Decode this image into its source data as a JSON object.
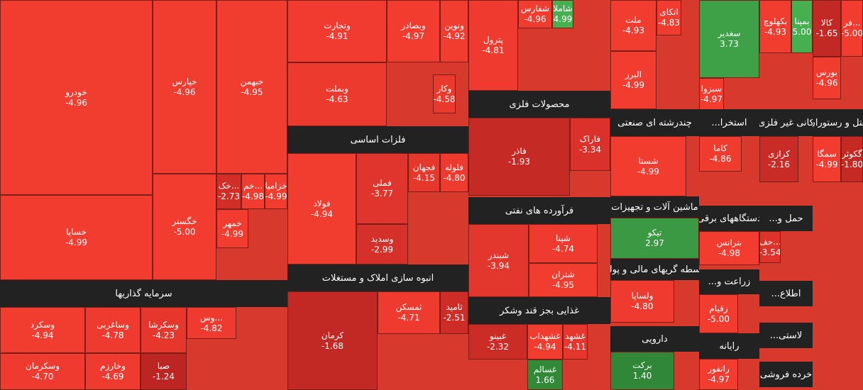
{
  "sectors": [
    {
      "tiles": [
        {
          "symbol": "خودرو",
          "change": "-4.96"
        },
        {
          "symbol": "خساپا",
          "change": "-4.99"
        },
        {
          "symbol": "خپارس",
          "change": "-4.96"
        },
        {
          "symbol": "خبهمن",
          "change": "-4.95"
        },
        {
          "symbol": "خگستر",
          "change": "-5.00"
        },
        {
          "symbol": "خک...",
          "change": "-2.73"
        },
        {
          "symbol": "خم...",
          "change": "-4.98"
        },
        {
          "symbol": "خزامیا",
          "change": "-4.99"
        },
        {
          "symbol": "خمهر",
          "change": "-4.99"
        }
      ]
    },
    {
      "name": "سرمایه گذاریها",
      "tiles": [
        {
          "symbol": "وسکرد",
          "change": "-4.94"
        },
        {
          "symbol": "وساغربی",
          "change": "-4.78"
        },
        {
          "symbol": "وسکرشا",
          "change": "-4.23"
        },
        {
          "symbol": "وس...",
          "change": "-4.82"
        },
        {
          "symbol": "وسکرمان",
          "change": "-4.70"
        },
        {
          "symbol": "وخارزم",
          "change": "-4.69"
        },
        {
          "symbol": "صبا",
          "change": "-1.24"
        }
      ]
    },
    {
      "tiles": [
        {
          "symbol": "وتجارت",
          "change": "-4.91"
        },
        {
          "symbol": "وبصادر",
          "change": "-4.97"
        },
        {
          "symbol": "ونوین",
          "change": "-4.92"
        },
        {
          "symbol": "وبملت",
          "change": "-4.63"
        },
        {
          "symbol": "وکار",
          "change": "-4.58"
        }
      ]
    },
    {
      "name": "فلزات اساسی",
      "tiles": [
        {
          "symbol": "فولاد",
          "change": "-4.94"
        },
        {
          "symbol": "فملی",
          "change": "-3.77"
        },
        {
          "symbol": "فجهان",
          "change": "-4.15"
        },
        {
          "symbol": "فلوله",
          "change": "-4.80"
        },
        {
          "symbol": "وسدید",
          "change": "-2.99"
        }
      ]
    },
    {
      "name": "انبوه سازی املاک و مستغلات",
      "tiles": [
        {
          "symbol": "کرمان",
          "change": "-1.68"
        },
        {
          "symbol": "ثمسکن",
          "change": "-4.71"
        },
        {
          "symbol": "ثامید",
          "change": "-2.51"
        }
      ]
    },
    {
      "tiles": [
        {
          "symbol": "پترول",
          "change": "-4.81"
        },
        {
          "symbol": "شفارس",
          "change": "-4.96"
        },
        {
          "symbol": "شاملا",
          "change": "4.99"
        }
      ]
    },
    {
      "name": "محصولات فلزی",
      "tiles": [
        {
          "symbol": "فاذر",
          "change": "-1.93"
        },
        {
          "symbol": "فاراک",
          "change": "-3.34"
        }
      ]
    },
    {
      "name": "فرآورده های نفتی",
      "tiles": [
        {
          "symbol": "شبندر",
          "change": "-3.94"
        },
        {
          "symbol": "شپنا",
          "change": "-4.74"
        },
        {
          "symbol": "شتران",
          "change": "-4.95"
        }
      ]
    },
    {
      "name": "غذایی بجز قند وشکر",
      "tiles": [
        {
          "symbol": "غبینو",
          "change": "-2.32"
        },
        {
          "symbol": "غشهداب",
          "change": "-4.94"
        },
        {
          "symbol": "غشهد",
          "change": "-4.11"
        },
        {
          "symbol": "غسالم",
          "change": "1.66"
        }
      ]
    },
    {
      "tiles": [
        {
          "symbol": "ملت",
          "change": "-4.93"
        },
        {
          "symbol": "اتکای",
          "change": "-4.83"
        },
        {
          "symbol": "البرز",
          "change": "-4.99"
        }
      ]
    },
    {
      "name": "چندرشته ای صنعتی",
      "tiles": [
        {
          "symbol": "شستا",
          "change": "-4.99"
        }
      ]
    },
    {
      "name": "ماشین آلات و تجهیزات",
      "tiles": [
        {
          "symbol": "تیکو",
          "change": "2.97"
        }
      ]
    },
    {
      "name": "واسطه گریهای مالی و پولی",
      "tiles": [
        {
          "symbol": "ولساپا",
          "change": "-4.80"
        }
      ]
    },
    {
      "name": "دارویی",
      "tiles": [
        {
          "symbol": "برکت",
          "change": "1.40"
        }
      ]
    },
    {
      "tiles": [
        {
          "symbol": "سغدیر",
          "change": "3.73"
        },
        {
          "symbol": "سبزوا",
          "change": "-4.97"
        }
      ]
    },
    {
      "name": "استخرا...",
      "tiles": [
        {
          "symbol": "کاما",
          "change": "-4.86"
        }
      ]
    },
    {
      "name": "دستگاههای برقی",
      "tiles": [
        {
          "symbol": "بترانس",
          "change": "-4.98"
        }
      ]
    },
    {
      "name": "زراعت و...",
      "tiles": [
        {
          "symbol": "زقیام",
          "change": "-5.00"
        }
      ]
    },
    {
      "name": "رایانه",
      "tiles": [
        {
          "symbol": "رانفور",
          "change": "-4.97"
        }
      ]
    },
    {
      "tiles": [
        {
          "symbol": "بکهلوچ",
          "change": "-4.93"
        },
        {
          "symbol": "بمپنا",
          "change": "5.00"
        }
      ]
    },
    {
      "name": "کانی غیر فلزی",
      "tiles": [
        {
          "symbol": "کرازی",
          "change": "-2.16"
        }
      ]
    },
    {
      "name": "حمل و...",
      "tiles": [
        {
          "symbol": "حف...",
          "change": "-3.54"
        }
      ]
    },
    {
      "name": "اطلاع...",
      "tiles": []
    },
    {
      "name": "لاستی...",
      "tiles": []
    },
    {
      "name": "خرده فروشی",
      "tiles": []
    },
    {
      "tiles": [
        {
          "symbol": "کالا",
          "change": "-1.65"
        },
        {
          "symbol": "فر...",
          "change": "-5.00"
        },
        {
          "symbol": "بورس",
          "change": "-4.96"
        }
      ]
    },
    {
      "name": "هتل و رستوران",
      "tiles": [
        {
          "symbol": "سمگا",
          "change": "-4.99"
        },
        {
          "symbol": "گکوثر",
          "change": "-1.80"
        }
      ]
    }
  ]
}
